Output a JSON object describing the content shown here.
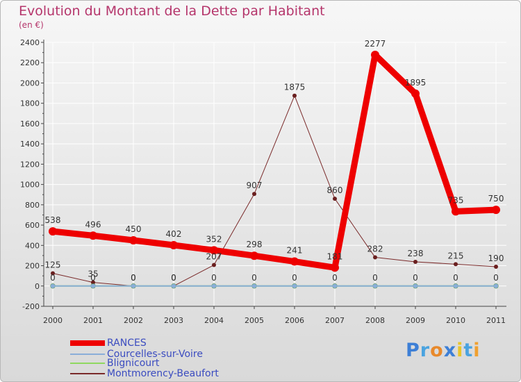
{
  "title": "Evolution du Montant de la Dette par Habitant",
  "subtitle": "(en €)",
  "brand": {
    "text": "Proxiti",
    "letters": [
      "P",
      "r",
      "o",
      "x",
      "i",
      "t",
      "i"
    ],
    "colors": [
      "#3d7fd6",
      "#4aa3e0",
      "#e8892b",
      "#3d7fd6",
      "#e8c52b",
      "#4aa3e0",
      "#f0a030"
    ]
  },
  "colors": {
    "title": "#b5356b",
    "axis": "#444444",
    "grid": "#ffffff"
  },
  "chart_data": {
    "type": "line",
    "title": "Evolution du Montant de la Dette par Habitant",
    "ylabel": "(en €)",
    "xlabel": "",
    "categories": [
      "2000",
      "2001",
      "2002",
      "2003",
      "2004",
      "2005",
      "2006",
      "2007",
      "2008",
      "2009",
      "2010",
      "2011"
    ],
    "ylim": [
      -200,
      2400
    ],
    "yticks": [
      -200,
      0,
      200,
      400,
      600,
      800,
      1000,
      1200,
      1400,
      1600,
      1800,
      2000,
      2200,
      2400
    ],
    "series": [
      {
        "name": "RANCES",
        "color": "#ee0000",
        "width": 9,
        "values": [
          538,
          496,
          450,
          402,
          352,
          298,
          241,
          181,
          2277,
          1895,
          735,
          750
        ],
        "labels": [
          "538",
          "496",
          "450",
          "402",
          "352",
          "298",
          "241",
          "181",
          "2277",
          "1895",
          "735",
          "750"
        ]
      },
      {
        "name": "Courcelles-sur-Voire",
        "color": "#8aaed8",
        "width": 2,
        "values": [
          0,
          0,
          0,
          0,
          0,
          0,
          0,
          0,
          0,
          0,
          0,
          0
        ],
        "labels": [
          "0",
          "0",
          "0",
          "0",
          "0",
          "0",
          "0",
          "0",
          "0",
          "0",
          "0",
          "0"
        ]
      },
      {
        "name": "Blignicourt",
        "color": "#8fd860",
        "width": 2,
        "values": [
          0,
          0,
          0,
          0,
          0,
          0,
          0,
          0,
          0,
          0,
          0,
          0
        ],
        "labels": []
      },
      {
        "name": "Montmorency-Beaufort",
        "color": "#7a2a2a",
        "width": 1,
        "values": [
          125,
          35,
          0,
          0,
          207,
          907,
          1875,
          860,
          282,
          238,
          215,
          190
        ],
        "labels": [
          "125",
          "35",
          "0",
          "0",
          "207",
          "907",
          "1875",
          "860",
          "282",
          "238",
          "215",
          "190"
        ]
      }
    ]
  }
}
